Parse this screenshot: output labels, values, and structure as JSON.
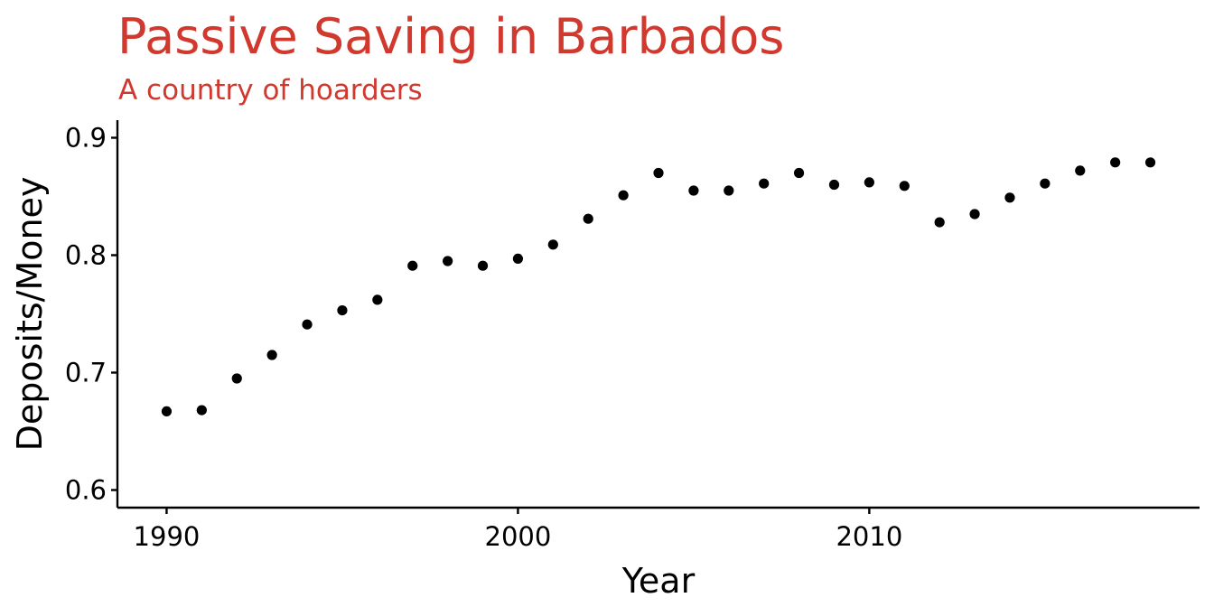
{
  "colors": {
    "title": "#d1382e",
    "points": "#000000",
    "background": "#ffffff"
  },
  "chart_data": {
    "type": "scatter",
    "title": "Passive Saving in Barbados",
    "subtitle": "A country of hoarders",
    "xlabel": "Year",
    "ylabel": "Deposits/Money",
    "xlim": [
      1988.6,
      2019.4
    ],
    "ylim": [
      0.585,
      0.915
    ],
    "x_ticks": [
      1990,
      2000,
      2010
    ],
    "x_tick_labels": [
      "1990",
      "2000",
      "2010"
    ],
    "y_ticks": [
      0.6,
      0.7,
      0.8,
      0.9
    ],
    "y_tick_labels": [
      "0.6",
      "0.7",
      "0.8",
      "0.9"
    ],
    "grid": false,
    "legend": "none",
    "series": [
      {
        "x": [
          1990,
          1991,
          1992,
          1993,
          1994,
          1995,
          1996,
          1997,
          1998,
          1999,
          2000,
          2001,
          2002,
          2003,
          2004,
          2005,
          2006,
          2007,
          2008,
          2009,
          2010,
          2011,
          2012,
          2013,
          2014,
          2015,
          2016,
          2017,
          2018
        ],
        "y": [
          0.667,
          0.668,
          0.695,
          0.715,
          0.741,
          0.753,
          0.762,
          0.791,
          0.795,
          0.791,
          0.797,
          0.809,
          0.831,
          0.851,
          0.87,
          0.855,
          0.855,
          0.861,
          0.87,
          0.86,
          0.862,
          0.859,
          0.828,
          0.835,
          0.849,
          0.861,
          0.872,
          0.879,
          0.879
        ]
      }
    ]
  }
}
